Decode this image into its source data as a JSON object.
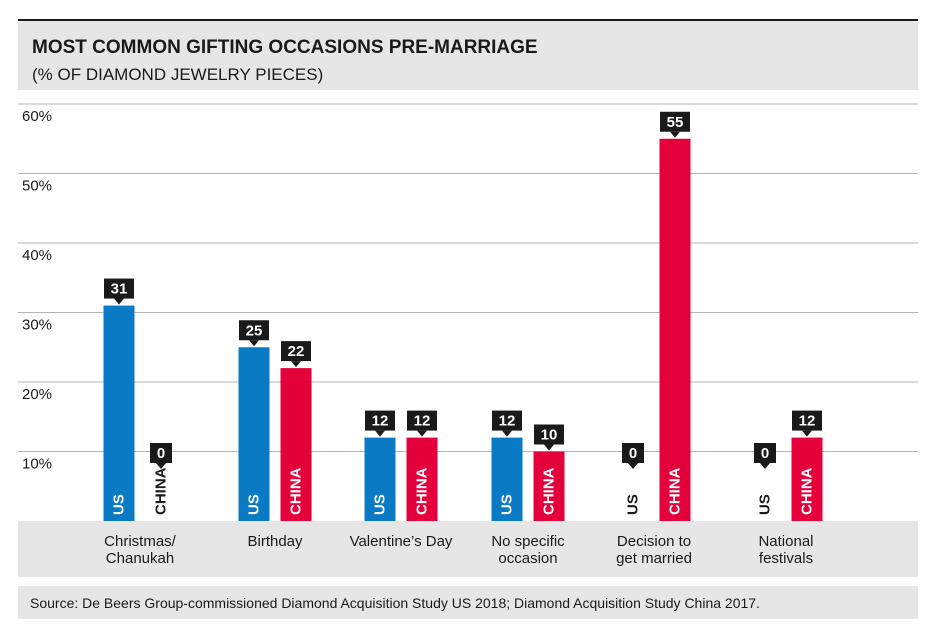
{
  "chart_data": {
    "type": "bar",
    "title": "MOST COMMON GIFTING OCCASIONS PRE-MARRIAGE",
    "subtitle": "(% OF DIAMOND JEWELRY PIECES)",
    "categories": [
      [
        "Christmas/",
        "Chanukah"
      ],
      [
        "Birthday"
      ],
      [
        "Valentine’s Day"
      ],
      [
        "No specific",
        "occasion"
      ],
      [
        "Decision to",
        "get married"
      ],
      [
        "National",
        "festivals"
      ]
    ],
    "series": [
      {
        "name": "US",
        "color": "#0a7ac4",
        "values": [
          31,
          25,
          12,
          12,
          0,
          0
        ]
      },
      {
        "name": "CHINA",
        "color": "#e4003b",
        "values": [
          0,
          22,
          12,
          10,
          55,
          12
        ]
      }
    ],
    "yticks": [
      "10%",
      "20%",
      "30%",
      "40%",
      "50%",
      "60%"
    ],
    "ylim": [
      0,
      60
    ],
    "grid": true,
    "colors": {
      "header_bg": "#e6e6e6",
      "label_bg": "#1a1a1a",
      "text": "#1a1a1a",
      "grid": "#b5b5b5"
    },
    "source": "Source: De Beers Group-commissioned Diamond Acquisition Study US 2018; Diamond Acquisition Study China 2017."
  }
}
